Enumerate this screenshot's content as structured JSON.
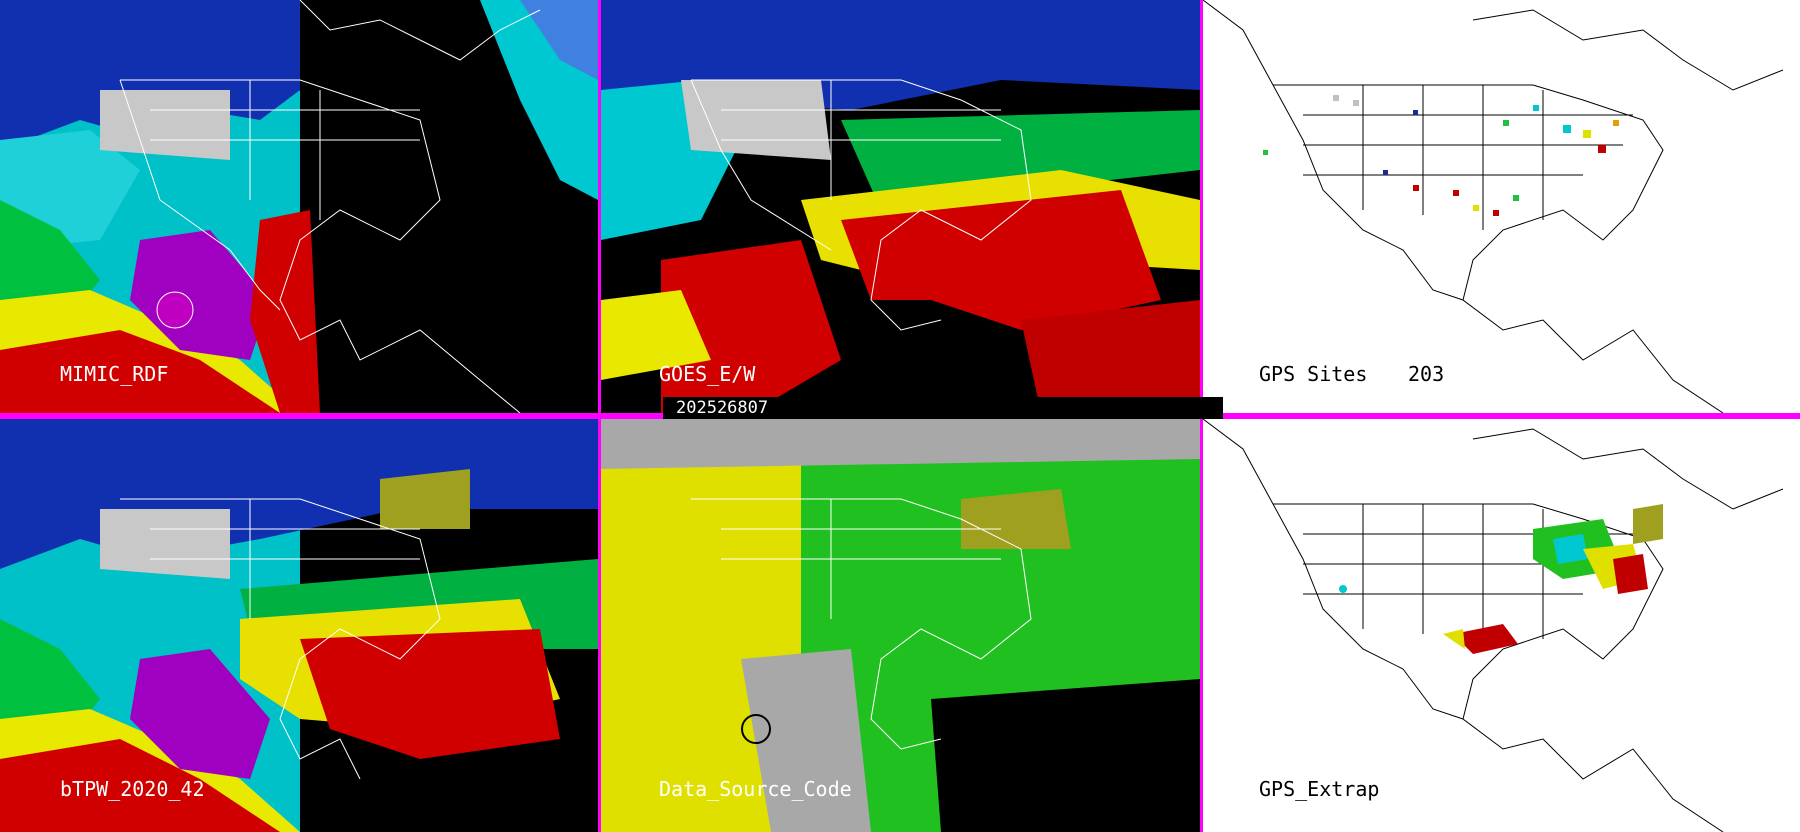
{
  "panels": [
    {
      "id": "p1",
      "title": "MIMIC_RDF",
      "style": "tpw_partial"
    },
    {
      "id": "p2",
      "title": "GOES_E/W",
      "style": "tpw_full"
    },
    {
      "id": "p3",
      "title": "GPS Sites",
      "count": "203",
      "style": "gps_sites"
    },
    {
      "id": "p4",
      "title": "bTPW_2020_42",
      "style": "tpw_blended"
    },
    {
      "id": "p5",
      "title": "Data_Source_Code",
      "style": "source_code"
    },
    {
      "id": "p6",
      "title": "GPS_Extrap",
      "style": "gps_extrap"
    }
  ],
  "timestamp": "202526807",
  "colors": {
    "divider": "#ff00ff",
    "tpw_scale": [
      "#c0c0c0",
      "#1a2a9a",
      "#2050d0",
      "#00d0e0",
      "#80f0f0",
      "#00c840",
      "#60e000",
      "#e8e800",
      "#e0a000",
      "#c00000",
      "#e00000",
      "#a000c0"
    ],
    "source_code": {
      "gray": "#a8a8a8",
      "yellow": "#e0e000",
      "green": "#20c020",
      "olive": "#a0a020"
    }
  }
}
